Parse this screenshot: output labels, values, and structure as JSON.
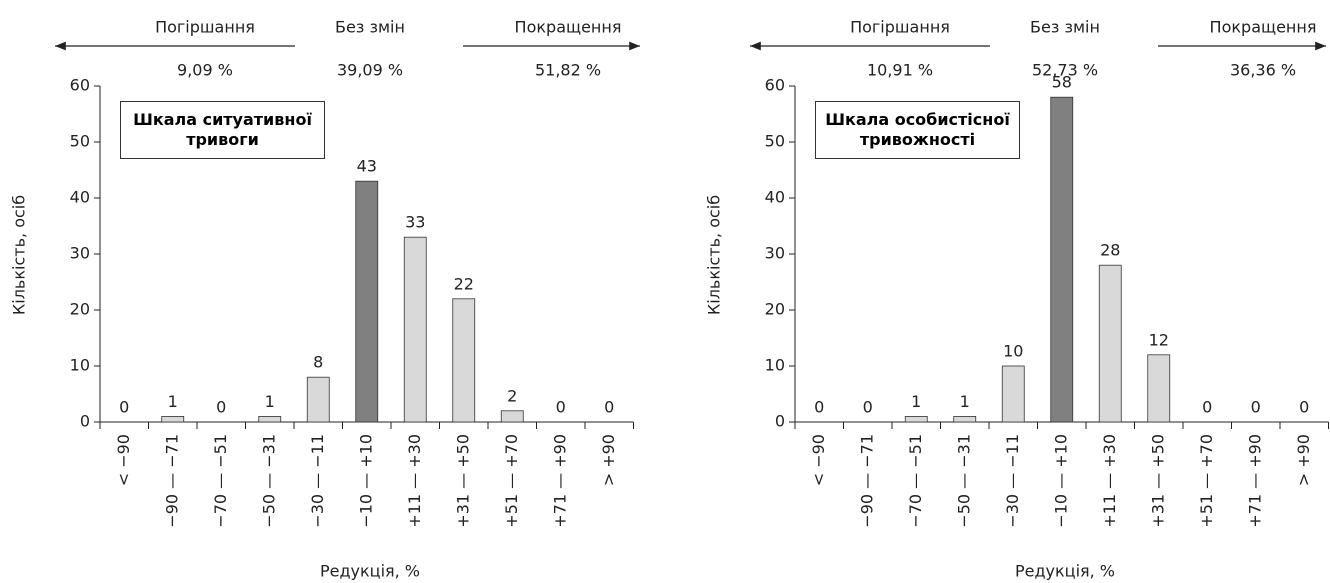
{
  "chart_data": [
    {
      "type": "bar",
      "title": "Шкала ситуативної тривоги",
      "annotations": {
        "worse": "Погіршання",
        "same": "Без змін",
        "better": "Покращення"
      },
      "percentages": [
        "9,09 %",
        "39,09 %",
        "51,82 %"
      ],
      "x_label": "Редукція, %",
      "y_label": "Кількість, осіб",
      "categories": [
        "< −90",
        "−90 — −71",
        "−70 — −51",
        "−50 — −31",
        "−30 — −11",
        "−10 — +10",
        "+11 — +30",
        "+31 — +50",
        "+51 — +70",
        "+71 — +90",
        "> +90"
      ],
      "values": [
        0,
        1,
        0,
        1,
        8,
        43,
        33,
        22,
        2,
        0,
        0
      ],
      "colors": [
        "#d9d9d9",
        "#d9d9d9",
        "#d9d9d9",
        "#d9d9d9",
        "#d9d9d9",
        "#808080",
        "#d9d9d9",
        "#d9d9d9",
        "#d9d9d9",
        "#d9d9d9",
        "#d9d9d9"
      ],
      "ylim": [
        0,
        60
      ],
      "yticks": [
        0,
        10,
        20,
        30,
        40,
        50,
        60
      ]
    },
    {
      "type": "bar",
      "title": "Шкала особистісної тривожності",
      "annotations": {
        "worse": "Погіршання",
        "same": "Без змін",
        "better": "Покращення"
      },
      "percentages": [
        "10,91 %",
        "52,73 %",
        "36,36 %"
      ],
      "x_label": "Редукція, %",
      "y_label": "Кількість, осіб",
      "categories": [
        "< −90",
        "−90 — −71",
        "−70 — −51",
        "−50 — −31",
        "−30 — −11",
        "−10 — +10",
        "+11 — +30",
        "+31 — +50",
        "+51 — +70",
        "+71 — +90",
        "> +90"
      ],
      "values": [
        0,
        0,
        1,
        1,
        10,
        58,
        28,
        12,
        0,
        0,
        0
      ],
      "colors": [
        "#d9d9d9",
        "#d9d9d9",
        "#d9d9d9",
        "#d9d9d9",
        "#d9d9d9",
        "#808080",
        "#d9d9d9",
        "#d9d9d9",
        "#d9d9d9",
        "#d9d9d9",
        "#d9d9d9"
      ],
      "ylim": [
        0,
        60
      ],
      "yticks": [
        0,
        10,
        20,
        30,
        40,
        50,
        60
      ]
    }
  ]
}
